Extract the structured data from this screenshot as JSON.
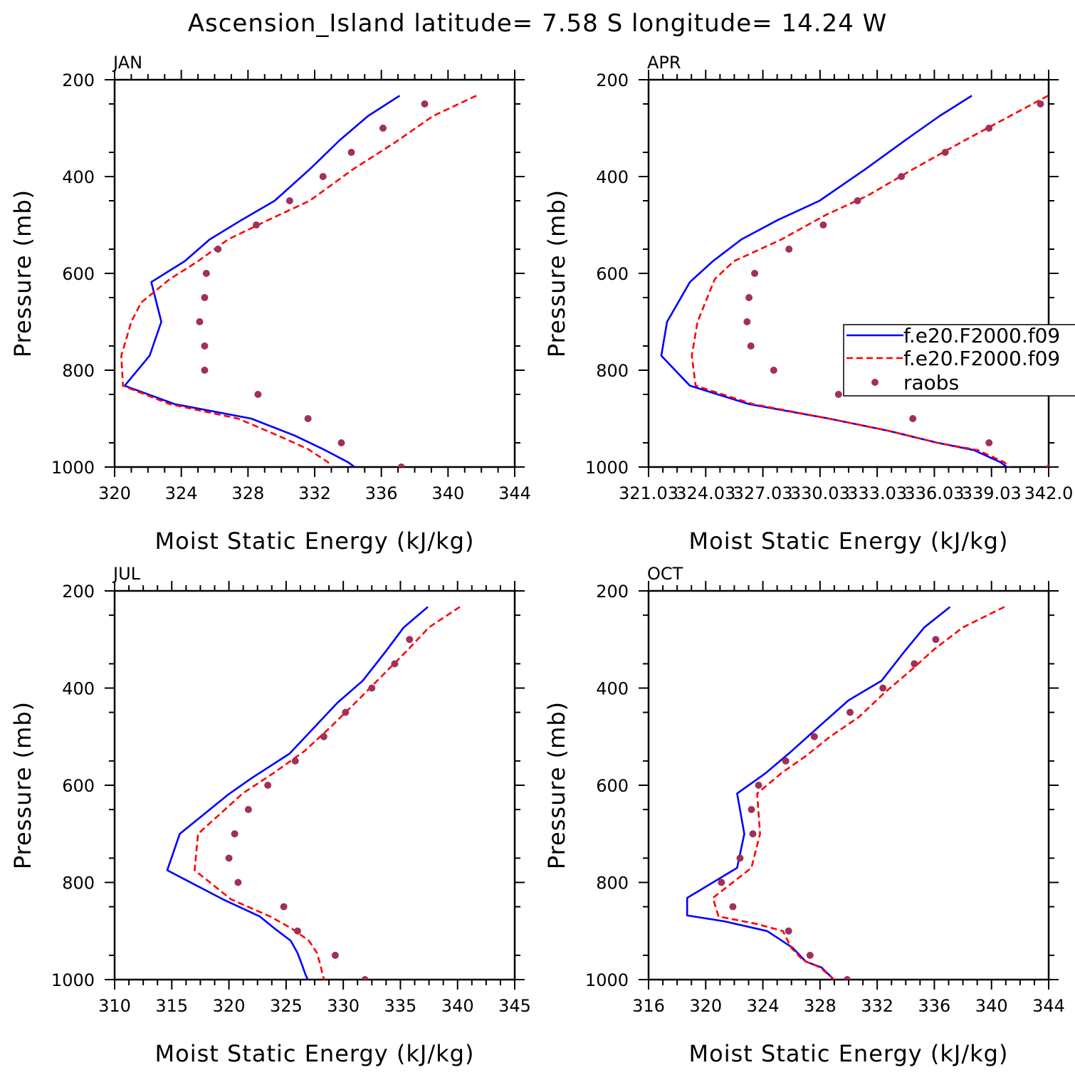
{
  "title": "Ascension_Island  latitude= 7.58 S longitude= 14.24 W",
  "colors": {
    "model1": "#0000ff",
    "model2": "#ff0000",
    "raobs": "#a0305a",
    "axis": "#000000"
  },
  "legend": {
    "entries": [
      "f.e20.F2000.f09",
      "f.e20.F2000.f09",
      "raobs"
    ]
  },
  "chart_data": [
    {
      "type": "line",
      "panel": "JAN",
      "xlabel": "Moist Static Energy (kJ/kg)",
      "ylabel": "Pressure (mb)",
      "xlim": [
        320,
        344
      ],
      "ylim": [
        1000,
        200
      ],
      "xticks": [
        320,
        324,
        328,
        332,
        336,
        340,
        344
      ],
      "xtick_labels": [
        "320",
        "324",
        "328",
        "332",
        "336",
        "340",
        "344"
      ],
      "yticks": [
        200,
        400,
        600,
        800,
        1000
      ],
      "legend": false,
      "series": [
        {
          "name": "f.e20.F2000.f09 (solid)",
          "style": "solid",
          "color": "#0000ff",
          "points": [
            [
              337.1,
              233
            ],
            [
              335.2,
              275
            ],
            [
              333.5,
              325
            ],
            [
              331.7,
              385
            ],
            [
              329.6,
              450
            ],
            [
              327.6,
              490
            ],
            [
              325.7,
              530
            ],
            [
              324.2,
              575
            ],
            [
              322.2,
              618
            ],
            [
              322.8,
              700
            ],
            [
              322.1,
              770
            ],
            [
              320.6,
              832
            ],
            [
              323.6,
              870
            ],
            [
              328.2,
              900
            ],
            [
              330.8,
              935
            ],
            [
              332.5,
              963
            ],
            [
              334.0,
              990
            ],
            [
              334.6,
              1005
            ]
          ]
        },
        {
          "name": "f.e20.F2000.f09 (dashed)",
          "style": "dashed",
          "color": "#ff0000",
          "points": [
            [
              341.7,
              233
            ],
            [
              339.1,
              275
            ],
            [
              336.8,
              330
            ],
            [
              334.3,
              385
            ],
            [
              331.7,
              450
            ],
            [
              329.2,
              490
            ],
            [
              326.8,
              530
            ],
            [
              325.0,
              575
            ],
            [
              323.3,
              612
            ],
            [
              321.6,
              660
            ],
            [
              321.0,
              700
            ],
            [
              320.4,
              770
            ],
            [
              320.5,
              832
            ],
            [
              323.3,
              870
            ],
            [
              327.4,
              900
            ],
            [
              329.8,
              935
            ],
            [
              331.6,
              963
            ],
            [
              332.8,
              990
            ],
            [
              333.1,
              1005
            ]
          ]
        },
        {
          "name": "raobs",
          "style": "dots",
          "color": "#a0305a",
          "points": [
            [
              338.6,
              250
            ],
            [
              336.1,
              300
            ],
            [
              334.2,
              350
            ],
            [
              332.5,
              400
            ],
            [
              330.5,
              450
            ],
            [
              328.5,
              500
            ],
            [
              326.2,
              550
            ],
            [
              325.5,
              600
            ],
            [
              325.4,
              650
            ],
            [
              325.1,
              700
            ],
            [
              325.4,
              750
            ],
            [
              325.4,
              800
            ],
            [
              328.6,
              850
            ],
            [
              331.6,
              900
            ],
            [
              333.6,
              950
            ],
            [
              337.2,
              1000
            ]
          ]
        }
      ]
    },
    {
      "type": "line",
      "panel": "APR",
      "xlabel": "Moist Static Energy (kJ/kg)",
      "ylabel": "Pressure (mb)",
      "xlim": [
        321.03,
        342.03
      ],
      "ylim": [
        1000,
        200
      ],
      "xticks": [
        321.03,
        324.03,
        327.03,
        330.03,
        333.03,
        336.03,
        339.03,
        342.03
      ],
      "xtick_labels": [
        "321.03",
        "324.03",
        "327.03",
        "330.03",
        "333.03",
        "336.03",
        "339.03",
        "342.0"
      ],
      "yticks": [
        200,
        400,
        600,
        800,
        1000
      ],
      "legend": true,
      "series": [
        {
          "name": "f.e20.F2000.f09 (solid)",
          "style": "solid",
          "color": "#0000ff",
          "points": [
            [
              338.0,
              233
            ],
            [
              336.3,
              275
            ],
            [
              334.5,
              325
            ],
            [
              332.4,
              385
            ],
            [
              330.0,
              450
            ],
            [
              327.8,
              490
            ],
            [
              325.9,
              530
            ],
            [
              324.4,
              575
            ],
            [
              323.2,
              618
            ],
            [
              322.0,
              700
            ],
            [
              321.7,
              770
            ],
            [
              323.2,
              832
            ],
            [
              326.3,
              870
            ],
            [
              330.5,
              900
            ],
            [
              333.6,
              925
            ],
            [
              336.2,
              950
            ],
            [
              338.1,
              965
            ],
            [
              339.5,
              990
            ],
            [
              340.0,
              1005
            ]
          ]
        },
        {
          "name": "f.e20.F2000.f09 (dashed)",
          "style": "dashed",
          "color": "#ff0000",
          "points": [
            [
              342.0,
              233
            ],
            [
              340.0,
              275
            ],
            [
              337.4,
              330
            ],
            [
              334.9,
              385
            ],
            [
              332.5,
              440
            ],
            [
              330.3,
              480
            ],
            [
              328.0,
              530
            ],
            [
              325.5,
              575
            ],
            [
              324.5,
              612
            ],
            [
              323.6,
              700
            ],
            [
              323.3,
              770
            ],
            [
              323.5,
              832
            ],
            [
              326.5,
              870
            ],
            [
              330.5,
              900
            ],
            [
              333.6,
              925
            ],
            [
              336.2,
              950
            ],
            [
              338.3,
              965
            ],
            [
              339.7,
              990
            ],
            [
              340.1,
              1005
            ]
          ]
        },
        {
          "name": "raobs",
          "style": "dots",
          "color": "#a0305a",
          "points": [
            [
              341.6,
              250
            ],
            [
              338.9,
              300
            ],
            [
              336.6,
              350
            ],
            [
              334.3,
              400
            ],
            [
              332.0,
              450
            ],
            [
              330.2,
              500
            ],
            [
              328.4,
              550
            ],
            [
              326.6,
              600
            ],
            [
              326.3,
              650
            ],
            [
              326.2,
              700
            ],
            [
              326.4,
              750
            ],
            [
              327.6,
              800
            ],
            [
              331.0,
              850
            ],
            [
              334.9,
              900
            ],
            [
              338.9,
              950
            ],
            [
              342.1,
              1000
            ]
          ]
        }
      ]
    },
    {
      "type": "line",
      "panel": "JUL",
      "xlabel": "Moist Static Energy (kJ/kg)",
      "ylabel": "Pressure (mb)",
      "xlim": [
        310,
        345
      ],
      "ylim": [
        1000,
        200
      ],
      "xticks": [
        310,
        315,
        320,
        325,
        330,
        335,
        340,
        345
      ],
      "xtick_labels": [
        "310",
        "315",
        "320",
        "325",
        "330",
        "335",
        "340",
        "345"
      ],
      "yticks": [
        200,
        400,
        600,
        800,
        1000
      ],
      "legend": false,
      "series": [
        {
          "name": "f.e20.F2000.f09 (solid)",
          "style": "solid",
          "color": "#0000ff",
          "points": [
            [
              337.4,
              233
            ],
            [
              335.3,
              275
            ],
            [
              333.7,
              325
            ],
            [
              331.7,
              385
            ],
            [
              329.5,
              430
            ],
            [
              327.5,
              480
            ],
            [
              325.3,
              535
            ],
            [
              322.0,
              585
            ],
            [
              320.0,
              618
            ],
            [
              315.7,
              700
            ],
            [
              314.6,
              775
            ],
            [
              319.5,
              835
            ],
            [
              322.7,
              870
            ],
            [
              324.0,
              895
            ],
            [
              325.4,
              920
            ],
            [
              326.0,
              945
            ],
            [
              326.4,
              970
            ],
            [
              326.7,
              990
            ],
            [
              327.0,
              1005
            ]
          ]
        },
        {
          "name": "f.e20.F2000.f09 (dashed)",
          "style": "dashed",
          "color": "#ff0000",
          "points": [
            [
              340.2,
              233
            ],
            [
              337.5,
              275
            ],
            [
              335.7,
              320
            ],
            [
              333.6,
              370
            ],
            [
              331.5,
              420
            ],
            [
              328.9,
              480
            ],
            [
              326.6,
              530
            ],
            [
              323.9,
              575
            ],
            [
              321.2,
              617
            ],
            [
              317.3,
              700
            ],
            [
              317.0,
              775
            ],
            [
              320.2,
              835
            ],
            [
              323.6,
              870
            ],
            [
              325.5,
              895
            ],
            [
              327.0,
              920
            ],
            [
              327.7,
              945
            ],
            [
              328.0,
              970
            ],
            [
              328.2,
              990
            ],
            [
              328.4,
              1005
            ]
          ]
        },
        {
          "name": "raobs",
          "style": "dots",
          "color": "#a0305a",
          "points": [
            [
              335.8,
              300
            ],
            [
              334.5,
              350
            ],
            [
              332.5,
              400
            ],
            [
              330.2,
              450
            ],
            [
              328.3,
              500
            ],
            [
              325.8,
              550
            ],
            [
              323.4,
              600
            ],
            [
              321.7,
              650
            ],
            [
              320.5,
              700
            ],
            [
              320.0,
              750
            ],
            [
              320.8,
              800
            ],
            [
              324.8,
              850
            ],
            [
              326.0,
              900
            ],
            [
              329.3,
              950
            ],
            [
              331.9,
              1000
            ]
          ]
        }
      ]
    },
    {
      "type": "line",
      "panel": "OCT",
      "xlabel": "Moist Static Energy (kJ/kg)",
      "ylabel": "Pressure (mb)",
      "xlim": [
        316,
        344
      ],
      "ylim": [
        1000,
        200
      ],
      "xticks": [
        316,
        320,
        324,
        328,
        332,
        336,
        340,
        344
      ],
      "xtick_labels": [
        "316",
        "320",
        "324",
        "328",
        "332",
        "336",
        "340",
        "344"
      ],
      "yticks": [
        200,
        400,
        600,
        800,
        1000
      ],
      "legend": false,
      "series": [
        {
          "name": "f.e20.F2000.f09 (solid)",
          "style": "solid",
          "color": "#0000ff",
          "points": [
            [
              337.1,
              233
            ],
            [
              335.3,
              275
            ],
            [
              333.9,
              325
            ],
            [
              332.3,
              385
            ],
            [
              330.0,
              425
            ],
            [
              327.9,
              480
            ],
            [
              326.0,
              530
            ],
            [
              324.2,
              575
            ],
            [
              322.2,
              617
            ],
            [
              322.7,
              700
            ],
            [
              322.2,
              770
            ],
            [
              318.7,
              832
            ],
            [
              318.7,
              868
            ],
            [
              321.3,
              880
            ],
            [
              324.3,
              900
            ],
            [
              326.1,
              935
            ],
            [
              327.0,
              963
            ],
            [
              328.1,
              975
            ],
            [
              328.8,
              995
            ],
            [
              329.0,
              1005
            ]
          ]
        },
        {
          "name": "f.e20.F2000.f09 (dashed)",
          "style": "dashed",
          "color": "#ff0000",
          "points": [
            [
              340.9,
              233
            ],
            [
              338.0,
              275
            ],
            [
              336.0,
              320
            ],
            [
              334.3,
              365
            ],
            [
              332.5,
              410
            ],
            [
              330.7,
              460
            ],
            [
              328.7,
              500
            ],
            [
              327.0,
              540
            ],
            [
              325.3,
              575
            ],
            [
              323.6,
              617
            ],
            [
              323.8,
              700
            ],
            [
              323.2,
              770
            ],
            [
              320.5,
              832
            ],
            [
              320.9,
              870
            ],
            [
              323.5,
              885
            ],
            [
              325.4,
              900
            ],
            [
              326.0,
              935
            ],
            [
              326.8,
              960
            ],
            [
              328.0,
              975
            ],
            [
              328.6,
              990
            ],
            [
              329.2,
              1005
            ]
          ]
        },
        {
          "name": "raobs",
          "style": "dots",
          "color": "#a0305a",
          "points": [
            [
              336.1,
              300
            ],
            [
              334.6,
              350
            ],
            [
              332.4,
              400
            ],
            [
              330.1,
              450
            ],
            [
              327.6,
              500
            ],
            [
              325.6,
              550
            ],
            [
              323.7,
              600
            ],
            [
              323.2,
              650
            ],
            [
              323.3,
              700
            ],
            [
              322.4,
              750
            ],
            [
              321.1,
              800
            ],
            [
              321.9,
              850
            ],
            [
              325.8,
              900
            ],
            [
              327.3,
              950
            ],
            [
              329.9,
              1000
            ]
          ]
        }
      ]
    }
  ],
  "panels": [
    {
      "label": "JAN",
      "xlabel": "Moist Static Energy (kJ/kg)",
      "ylabel": "Pressure (mb)"
    },
    {
      "label": "APR",
      "xlabel": "Moist Static Energy (kJ/kg)",
      "ylabel": "Pressure (mb)"
    },
    {
      "label": "JUL",
      "xlabel": "Moist Static Energy (kJ/kg)",
      "ylabel": "Pressure (mb)"
    },
    {
      "label": "OCT",
      "xlabel": "Moist Static Energy (kJ/kg)",
      "ylabel": "Pressure (mb)"
    }
  ]
}
